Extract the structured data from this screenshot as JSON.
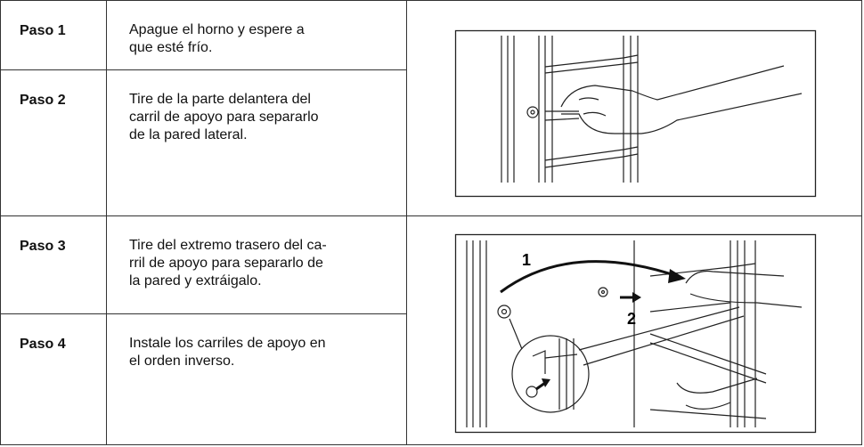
{
  "steps": [
    {
      "label": "Paso 1",
      "lines": [
        "Apague el horno y espere a",
        "que esté frío."
      ]
    },
    {
      "label": "Paso 2",
      "lines": [
        "Tire de la parte delantera del",
        "carril de apoyo para separarlo",
        "de la pared lateral."
      ]
    },
    {
      "label": "Paso 3",
      "lines": [
        "Tire del extremo trasero del ca-",
        "rril de apoyo para separarlo de",
        "la pared y extráigalo."
      ]
    },
    {
      "label": "Paso 4",
      "lines": [
        "Instale los carriles de apoyo en",
        "el orden inverso."
      ]
    }
  ],
  "figures": [
    {
      "callouts": []
    },
    {
      "callouts": [
        "1",
        "2"
      ]
    }
  ]
}
